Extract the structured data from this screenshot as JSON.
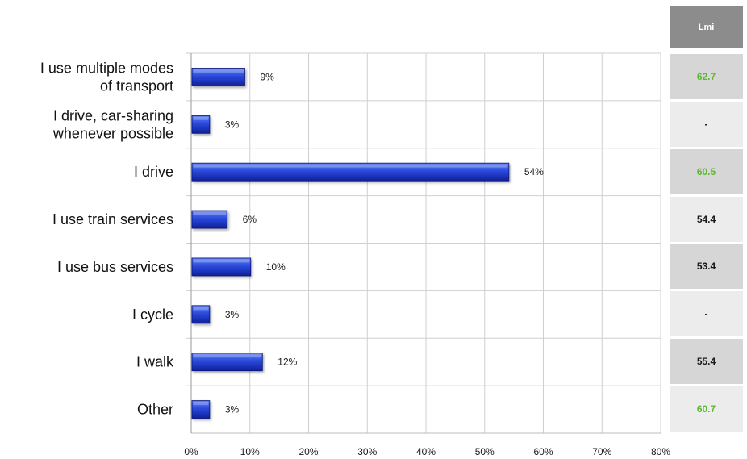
{
  "chart_data": {
    "type": "bar",
    "orientation": "horizontal",
    "categories": [
      "I use multiple modes of transport",
      "I drive, car-sharing whenever possible",
      "I drive",
      "I use train services",
      "I use bus services",
      "I cycle",
      "I walk",
      "Other"
    ],
    "category_lines": [
      [
        "I use multiple modes",
        "of transport"
      ],
      [
        "I drive, car-sharing",
        "whenever possible"
      ],
      [
        "I drive"
      ],
      [
        "I use train services"
      ],
      [
        "I use bus services"
      ],
      [
        "I cycle"
      ],
      [
        "I walk"
      ],
      [
        "Other"
      ]
    ],
    "values": [
      9,
      3,
      54,
      6,
      10,
      3,
      12,
      3
    ],
    "value_labels": [
      "9%",
      "3%",
      "54%",
      "6%",
      "10%",
      "3%",
      "12%",
      "3%"
    ],
    "xlim": [
      0,
      80
    ],
    "xticks": [
      0,
      10,
      20,
      30,
      40,
      50,
      60,
      70,
      80
    ],
    "xtick_labels": [
      "0%",
      "10%",
      "20%",
      "30%",
      "40%",
      "50%",
      "60%",
      "70%",
      "80%"
    ],
    "grid": true,
    "bar_color": "#1f3fd1"
  },
  "side_table": {
    "header": "Lmi",
    "values": [
      "62.7",
      "-",
      "60.5",
      "54.4",
      "53.4",
      "-",
      "55.4",
      "60.7"
    ],
    "value_colors": [
      "#5cb82e",
      "#1a1a1a",
      "#5cb82e",
      "#1a1a1a",
      "#1a1a1a",
      "#1a1a1a",
      "#1a1a1a",
      "#5cb82e"
    ],
    "row_shades": [
      "#d6d6d6",
      "#ececec",
      "#d6d6d6",
      "#ececec",
      "#d6d6d6",
      "#ececec",
      "#d6d6d6",
      "#ececec"
    ]
  }
}
